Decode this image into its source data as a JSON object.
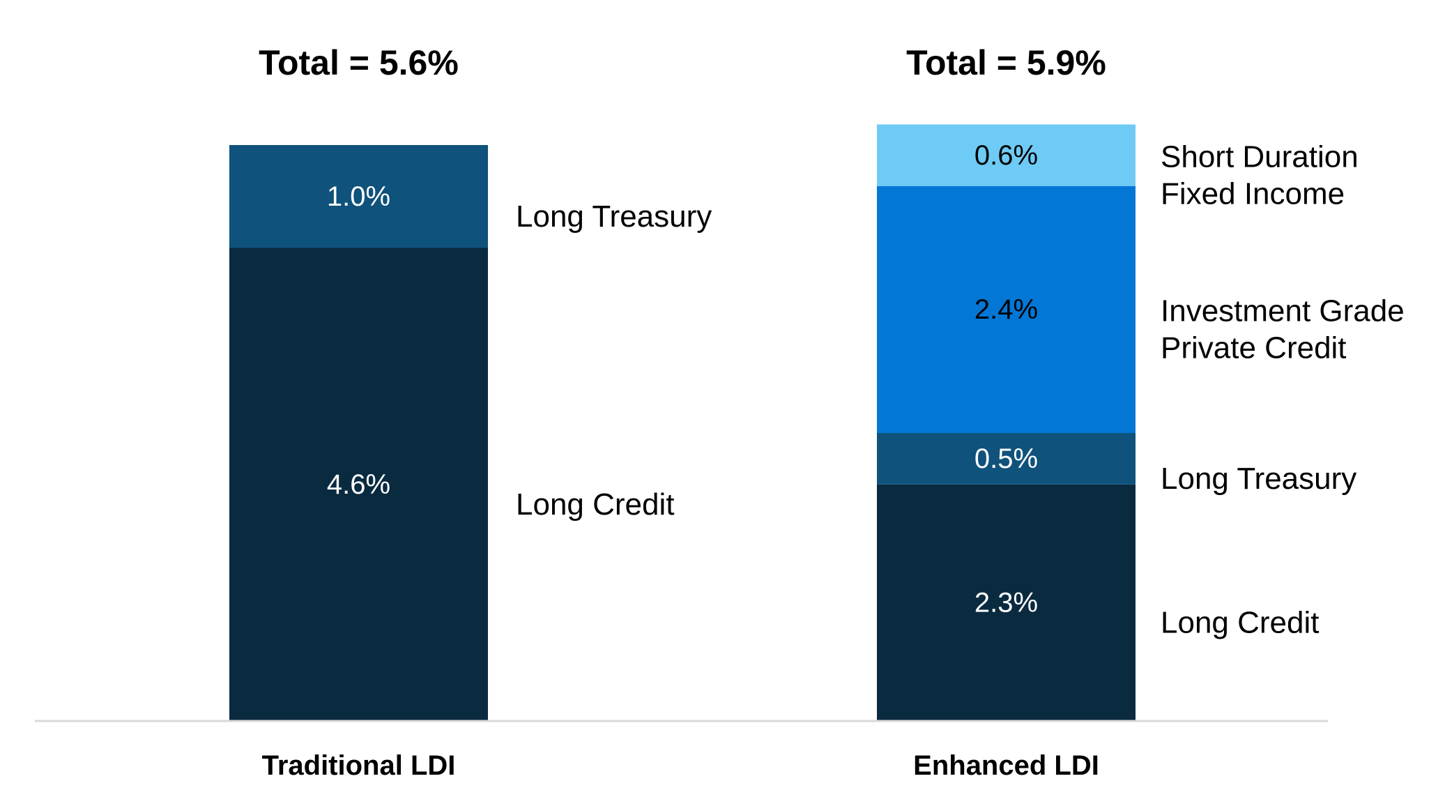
{
  "chart_data": {
    "type": "bar",
    "stacked": true,
    "title": "",
    "xlabel": "",
    "ylabel": "",
    "ylim": [
      0,
      6.5
    ],
    "grid": false,
    "legend": "none",
    "categories": [
      "Traditional LDI",
      "Enhanced LDI"
    ],
    "totals": [
      "Total = 5.6%",
      "Total = 5.9%"
    ],
    "series": [
      {
        "name": "Long Credit",
        "values": [
          4.6,
          2.3
        ],
        "labels": [
          "4.6%",
          "2.3%"
        ],
        "color": "#0a2a40",
        "text_color": "#ffffff"
      },
      {
        "name": "Long Treasury",
        "values": [
          1.0,
          0.5
        ],
        "labels": [
          "1.0%",
          "0.5%"
        ],
        "color": "#0f527b",
        "text_color": "#ffffff"
      },
      {
        "name": "Investment Grade Private Credit",
        "values": [
          0,
          2.4
        ],
        "labels": [
          "",
          "2.4%"
        ],
        "color": "#0277d6",
        "text_color": "#000000"
      },
      {
        "name": "Short Duration Fixed Income",
        "values": [
          0,
          0.6
        ],
        "labels": [
          "",
          "0.6%"
        ],
        "color": "#6ecbf5",
        "text_color": "#000000"
      }
    ],
    "segment_names": [
      [
        {
          "series": 0,
          "lines": [
            "Long Credit"
          ]
        },
        {
          "series": 1,
          "lines": [
            "Long Treasury"
          ]
        }
      ],
      [
        {
          "series": 3,
          "lines": [
            "Short Duration",
            "Fixed Income"
          ]
        },
        {
          "series": 2,
          "lines": [
            "Investment Grade",
            "Private Credit"
          ]
        },
        {
          "series": 1,
          "lines": [
            "Long Treasury"
          ]
        },
        {
          "series": 0,
          "lines": [
            "Long Credit"
          ]
        }
      ]
    ],
    "axis_color": "#d9d9d9"
  }
}
